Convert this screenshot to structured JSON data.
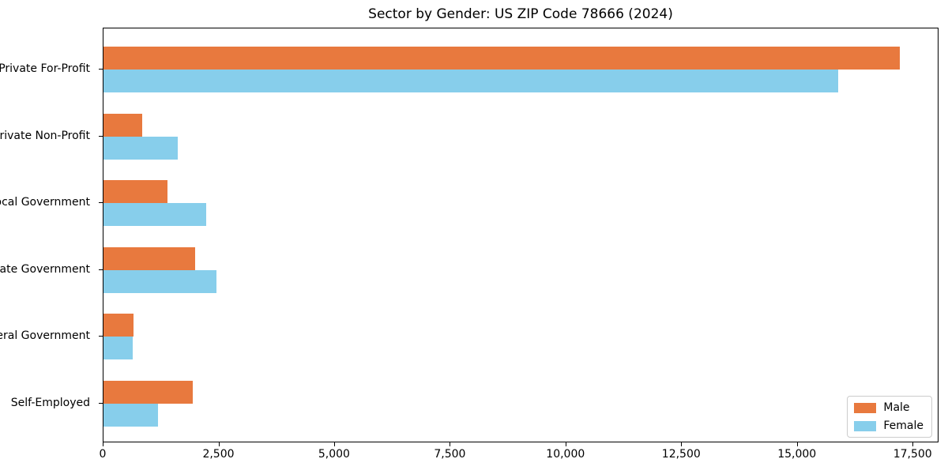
{
  "title": "Sector by Gender: US ZIP Code 78666 (2024)",
  "chart_data": {
    "type": "bar",
    "orientation": "horizontal",
    "title": "Sector by Gender: US ZIP Code 78666 (2024)",
    "categories": [
      "Private For-Profit",
      "Private Non-Profit",
      "Local Government",
      "State Government",
      "Federal Government",
      "Self-Employed"
    ],
    "series": [
      {
        "name": "Male",
        "color": "#e8793e",
        "values": [
          17200,
          840,
          1380,
          1980,
          655,
          1935
        ]
      },
      {
        "name": "Female",
        "color": "#87ceeb",
        "values": [
          15880,
          1610,
          2210,
          2440,
          625,
          1170
        ]
      }
    ],
    "xlabel": "",
    "ylabel": "",
    "xlim": [
      0,
      18060
    ],
    "xticks": [
      0,
      2500,
      5000,
      7500,
      10000,
      12500,
      15000,
      17500
    ],
    "xtick_labels": [
      "0",
      "2,500",
      "5,000",
      "7,500",
      "10,000",
      "12,500",
      "15,000",
      "17,500"
    ],
    "grid": false,
    "legend_position": "lower right",
    "bar_order_note": "Male bar drawn above Female bar within each category group"
  },
  "colors": {
    "male": "#e8793e",
    "female": "#87ceeb",
    "axis": "#000000",
    "legend_border": "#cccccc",
    "background": "#ffffff"
  }
}
